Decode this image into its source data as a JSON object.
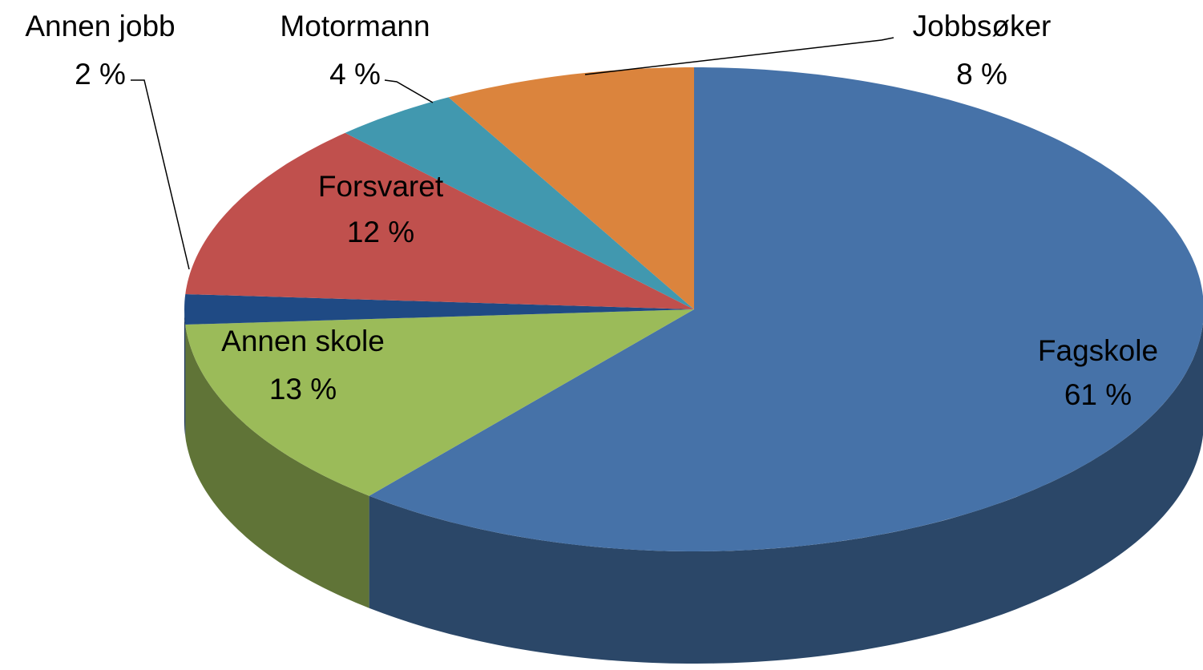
{
  "chart_data": {
    "type": "pie",
    "categories": [
      "Fagskole",
      "Annen skole",
      "Annen jobb",
      "Forsvaret",
      "Motormann",
      "Jobbsøker"
    ],
    "values": [
      61,
      13,
      2,
      12,
      4,
      8
    ],
    "value_labels": [
      "61 %",
      "13 %",
      "2 %",
      "12 %",
      "4 %",
      "8 %"
    ],
    "colors": [
      "#4672a8",
      "#9bbb59",
      "#1f4a84",
      "#c0504d",
      "#4198af",
      "#db843d"
    ]
  }
}
